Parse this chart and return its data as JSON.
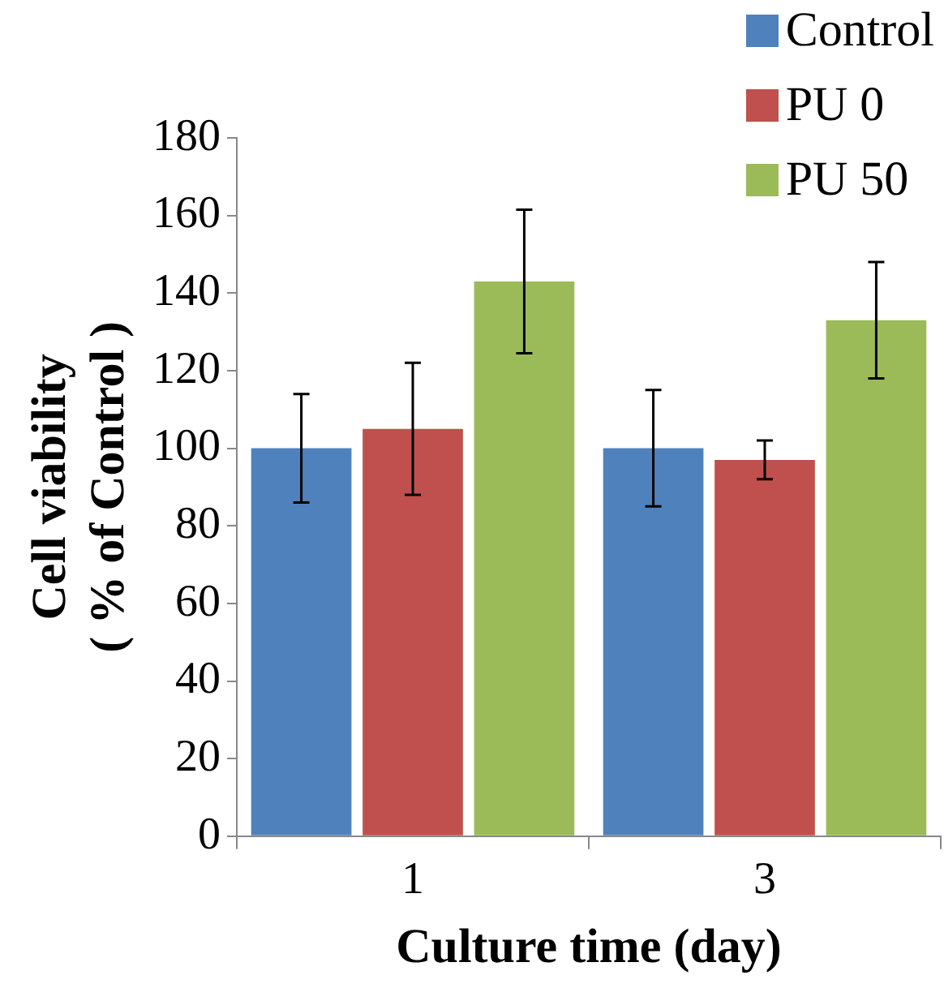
{
  "chart_data": {
    "type": "bar",
    "xlabel": "Culture time (day)",
    "ylabel": "Cell viability\n( % of Control )",
    "categories": [
      "1",
      "3"
    ],
    "series": [
      {
        "name": "Control",
        "color": "#4f81bd",
        "values": [
          100,
          100
        ],
        "errors": [
          14,
          15
        ]
      },
      {
        "name": "PU 0",
        "color": "#c0504d",
        "values": [
          105,
          97
        ],
        "errors": [
          17,
          5
        ]
      },
      {
        "name": "PU 50",
        "color": "#9bbb59",
        "values": [
          143,
          133
        ],
        "errors": [
          18.5,
          15
        ]
      }
    ],
    "ylim": [
      0,
      180
    ],
    "yticks": [
      0,
      20,
      40,
      60,
      80,
      100,
      120,
      140,
      160,
      180
    ],
    "legend": "top right"
  }
}
